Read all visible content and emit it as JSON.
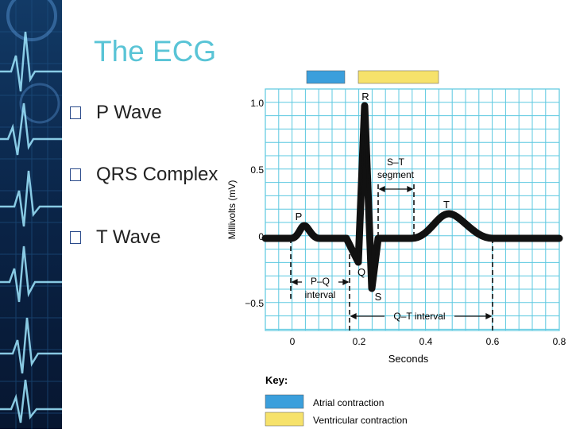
{
  "slide": {
    "title": "The ECG",
    "bullets": [
      "P Wave",
      "QRS Complex",
      "T Wave"
    ]
  },
  "diagram": {
    "y_axis_label": "Millivolts (mV)",
    "y_ticks": [
      "1.0",
      "0.5",
      "0",
      "−0.5"
    ],
    "x_ticks": [
      "0",
      "0.2",
      "0.4",
      "0.6",
      "0.8"
    ],
    "x_axis_label": "Seconds",
    "labels": {
      "p": "P",
      "q": "Q",
      "r": "R",
      "s": "S",
      "t": "T",
      "st_segment_line1": "S–T",
      "st_segment_line2": "segment",
      "pq_interval_line1": "P–Q",
      "pq_interval_line2": "interval",
      "qt_interval": "Q–T interval"
    },
    "key": {
      "title": "Key:",
      "items": [
        {
          "label": "Atrial contraction",
          "color": "#3b9fdc"
        },
        {
          "label": "Ventricular contraction",
          "color": "#f6e26b"
        }
      ]
    },
    "colors": {
      "grid": "#5bc8e0",
      "trace": "#111111",
      "atrial": "#3b9fdc",
      "ventricular": "#f6e26b",
      "title": "#59c4d6"
    }
  }
}
